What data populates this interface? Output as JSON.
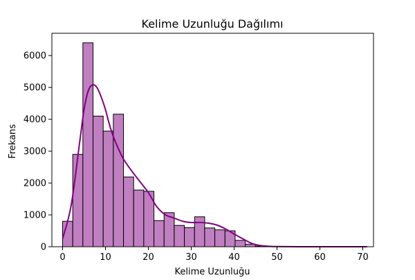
{
  "chart_data": {
    "type": "bar",
    "title": "Kelime Uzunluğu Dağılımı",
    "xlabel": "Kelime Uzunluğu",
    "ylabel": "Frekans",
    "xlim": [
      -2.5,
      72.5
    ],
    "ylim": [
      0,
      6700
    ],
    "x_ticks": [
      0,
      10,
      20,
      30,
      40,
      50,
      60,
      70
    ],
    "y_ticks": [
      0,
      1000,
      2000,
      3000,
      4000,
      5000,
      6000
    ],
    "grid": false,
    "legend": "none",
    "bin_edges": [
      0,
      2.37,
      4.73,
      7.1,
      9.47,
      11.83,
      14.2,
      16.57,
      18.93,
      21.3,
      23.67,
      26.03,
      28.4,
      30.77,
      33.13,
      35.5,
      37.87,
      40.23,
      42.6,
      44.97,
      47.33,
      49.7,
      52.07,
      54.43,
      56.8,
      59.17,
      61.53,
      63.9,
      66.27,
      68.63,
      71.0
    ],
    "counts": [
      800,
      2900,
      6400,
      4100,
      3630,
      4160,
      2190,
      1780,
      1740,
      820,
      1070,
      670,
      600,
      940,
      590,
      530,
      500,
      200,
      80,
      20,
      8,
      4,
      3,
      2,
      2,
      1,
      1,
      1,
      1,
      1
    ],
    "kde": {
      "x": [
        0,
        2,
        4,
        5,
        6,
        7,
        8,
        9,
        10,
        11,
        12,
        14,
        16,
        18,
        20,
        22,
        24,
        26,
        28,
        30,
        32,
        34,
        36,
        38,
        40,
        42,
        44,
        46,
        48,
        50,
        55,
        60,
        65,
        71
      ],
      "y": [
        250,
        1300,
        3300,
        4300,
        4900,
        5080,
        5000,
        4700,
        4300,
        3800,
        3400,
        2800,
        2400,
        2050,
        1700,
        1250,
        1000,
        900,
        800,
        760,
        760,
        740,
        680,
        560,
        400,
        250,
        110,
        40,
        15,
        5,
        1,
        0,
        0,
        0
      ]
    },
    "colors": {
      "bar_fill": "#c07fc0",
      "bar_edge": "#000000",
      "kde_line": "#800080"
    }
  }
}
